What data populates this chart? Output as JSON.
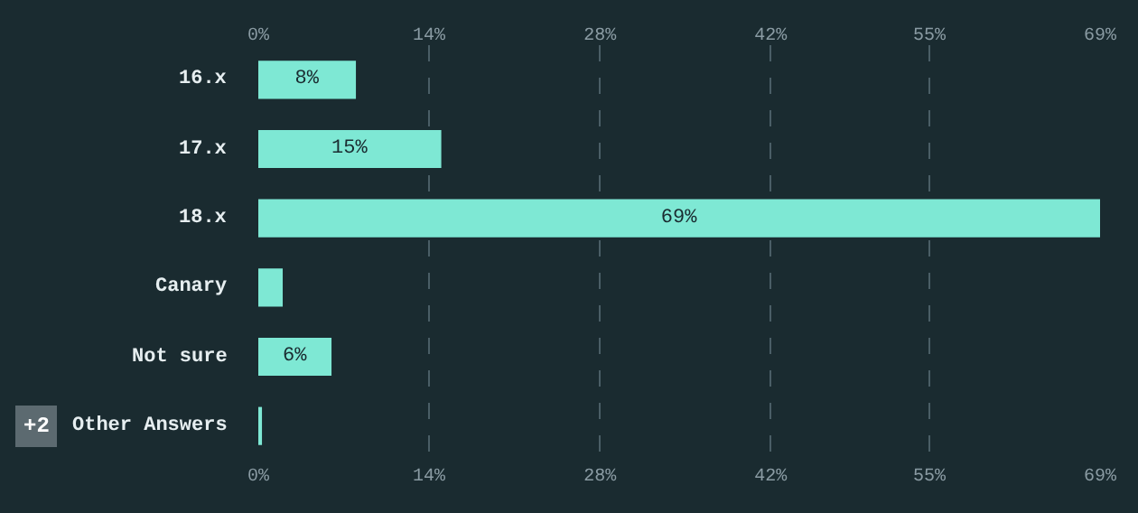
{
  "chart_data": {
    "type": "bar",
    "orientation": "horizontal",
    "categories": [
      "16.x",
      "17.x",
      "18.x",
      "Canary",
      "Not sure",
      "Other Answers"
    ],
    "values": [
      8,
      15,
      69,
      2,
      6,
      0.3
    ],
    "value_labels": [
      "8%",
      "15%",
      "69%",
      null,
      "6%",
      null
    ],
    "color": "#7ee8d4",
    "xlim": [
      0,
      69
    ],
    "xticks": [
      {
        "value": 0,
        "label": "0%"
      },
      {
        "value": 14,
        "label": "14%"
      },
      {
        "value": 28,
        "label": "28%"
      },
      {
        "value": 42,
        "label": "42%"
      },
      {
        "value": 55,
        "label": "55%"
      },
      {
        "value": 69,
        "label": "69%"
      }
    ],
    "x2lim": [
      0,
      69
    ],
    "x2ticks": [
      {
        "value": 0,
        "label": "0%"
      },
      {
        "value": 14,
        "label": "14%"
      },
      {
        "value": 28,
        "label": "28%"
      },
      {
        "value": 42,
        "label": "42%"
      },
      {
        "value": 55,
        "label": "55%"
      },
      {
        "value": 69,
        "label": "69%"
      }
    ],
    "grid": "x",
    "legend": false,
    "annotations": [
      "+2"
    ]
  }
}
